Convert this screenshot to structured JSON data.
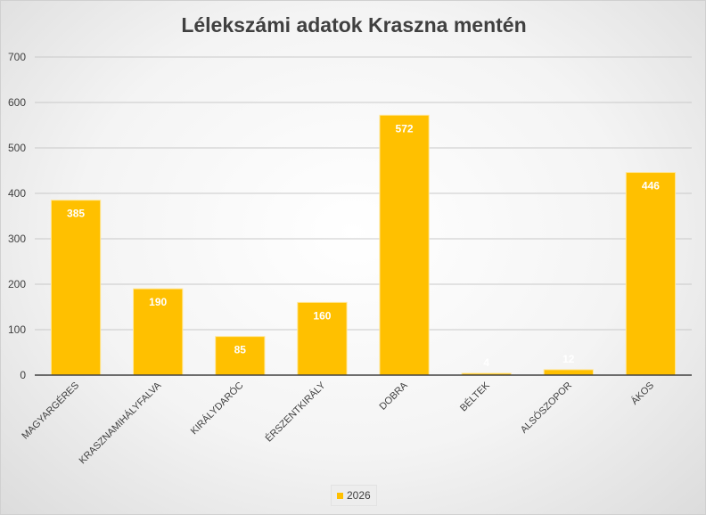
{
  "chart_data": {
    "type": "bar",
    "title": "Lélekszámi adatok Kraszna mentén",
    "categories": [
      "MAGYARGÉRES",
      "KRASZNAMIHÁLYFALVA",
      "KIRÁLYDARÓC",
      "ÉRSZENTKIRÁLY",
      "DOBRA",
      "BÉLTEK",
      "ALSÓSZOPOR",
      "ÁKOS"
    ],
    "series": [
      {
        "name": "2026",
        "values": [
          385,
          190,
          85,
          160,
          572,
          4,
          12,
          446
        ],
        "color": "#FFC000"
      }
    ],
    "ylim": [
      0,
      700
    ],
    "yticks": [
      0,
      100,
      200,
      300,
      400,
      500,
      600,
      700
    ],
    "grid": true,
    "legend": "bottom",
    "data_labels": true
  }
}
